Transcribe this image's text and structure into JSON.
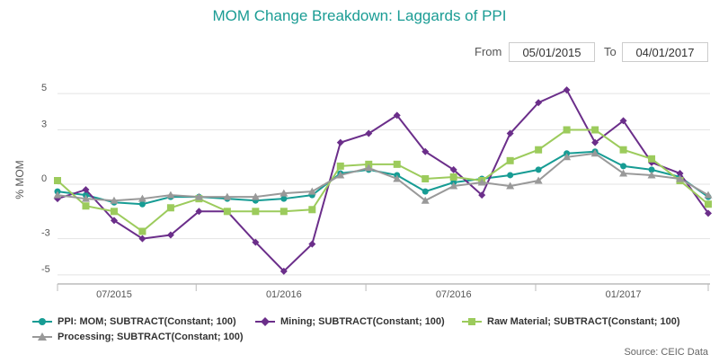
{
  "page": {
    "title": "MOM Change Breakdown: Laggards of PPI",
    "from_label": "From",
    "from_value": "05/01/2015",
    "to_label": "To",
    "to_value": "04/01/2017",
    "source": "Source: CEIC Data"
  },
  "chart_data": {
    "type": "line",
    "ylabel": "% MOM",
    "ylim": [
      -5.5,
      6
    ],
    "yticks": [
      5,
      3,
      0,
      -3,
      -5
    ],
    "x": [
      "2015-05",
      "2015-06",
      "2015-07",
      "2015-08",
      "2015-09",
      "2015-10",
      "2015-11",
      "2015-12",
      "2016-01",
      "2016-02",
      "2016-03",
      "2016-04",
      "2016-05",
      "2016-06",
      "2016-07",
      "2016-08",
      "2016-09",
      "2016-10",
      "2016-11",
      "2016-12",
      "2017-01",
      "2017-02",
      "2017-03",
      "2017-04"
    ],
    "xticks": [
      {
        "x": "2015-07",
        "label": "07/2015"
      },
      {
        "x": "2016-01",
        "label": "01/2016"
      },
      {
        "x": "2016-07",
        "label": "07/2016"
      },
      {
        "x": "2017-01",
        "label": "01/2017"
      }
    ],
    "grid": "horizontal",
    "legend_position": "bottom",
    "series": [
      {
        "name": "PPI: MOM; SUBTRACT(Constant; 100)",
        "color": "#179c94",
        "marker": "circle",
        "values": [
          -0.4,
          -0.6,
          -1.0,
          -1.1,
          -0.7,
          -0.7,
          -0.8,
          -0.9,
          -0.8,
          -0.6,
          0.6,
          0.8,
          0.5,
          -0.4,
          0.1,
          0.3,
          0.5,
          0.8,
          1.7,
          1.8,
          1.0,
          0.8,
          0.4,
          -0.7
        ]
      },
      {
        "name": "Mining; SUBTRACT(Constant; 100)",
        "color": "#6b2e8a",
        "marker": "diamond",
        "values": [
          -0.8,
          -0.3,
          -2.0,
          -3.0,
          -2.8,
          -1.5,
          -1.5,
          -3.2,
          -4.8,
          -3.3,
          2.3,
          2.8,
          3.8,
          1.8,
          0.8,
          -0.6,
          2.8,
          4.5,
          5.2,
          2.3,
          3.5,
          1.2,
          0.6,
          -1.6
        ]
      },
      {
        "name": "Raw Material; SUBTRACT(Constant; 100)",
        "color": "#9ccb5c",
        "marker": "square",
        "values": [
          0.2,
          -1.2,
          -1.5,
          -2.6,
          -1.3,
          -0.8,
          -1.5,
          -1.5,
          -1.5,
          -1.4,
          1.0,
          1.1,
          1.1,
          0.3,
          0.4,
          0.2,
          1.3,
          1.9,
          3.0,
          3.0,
          1.9,
          1.4,
          0.2,
          -1.1
        ]
      },
      {
        "name": "Processing; SUBTRACT(Constant; 100)",
        "color": "#999999",
        "marker": "triangle",
        "values": [
          -0.6,
          -0.8,
          -0.9,
          -0.8,
          -0.6,
          -0.7,
          -0.7,
          -0.7,
          -0.5,
          -0.4,
          0.5,
          0.9,
          0.3,
          -0.9,
          -0.1,
          0.1,
          -0.1,
          0.2,
          1.5,
          1.7,
          0.6,
          0.5,
          0.3,
          -0.6
        ]
      }
    ]
  }
}
